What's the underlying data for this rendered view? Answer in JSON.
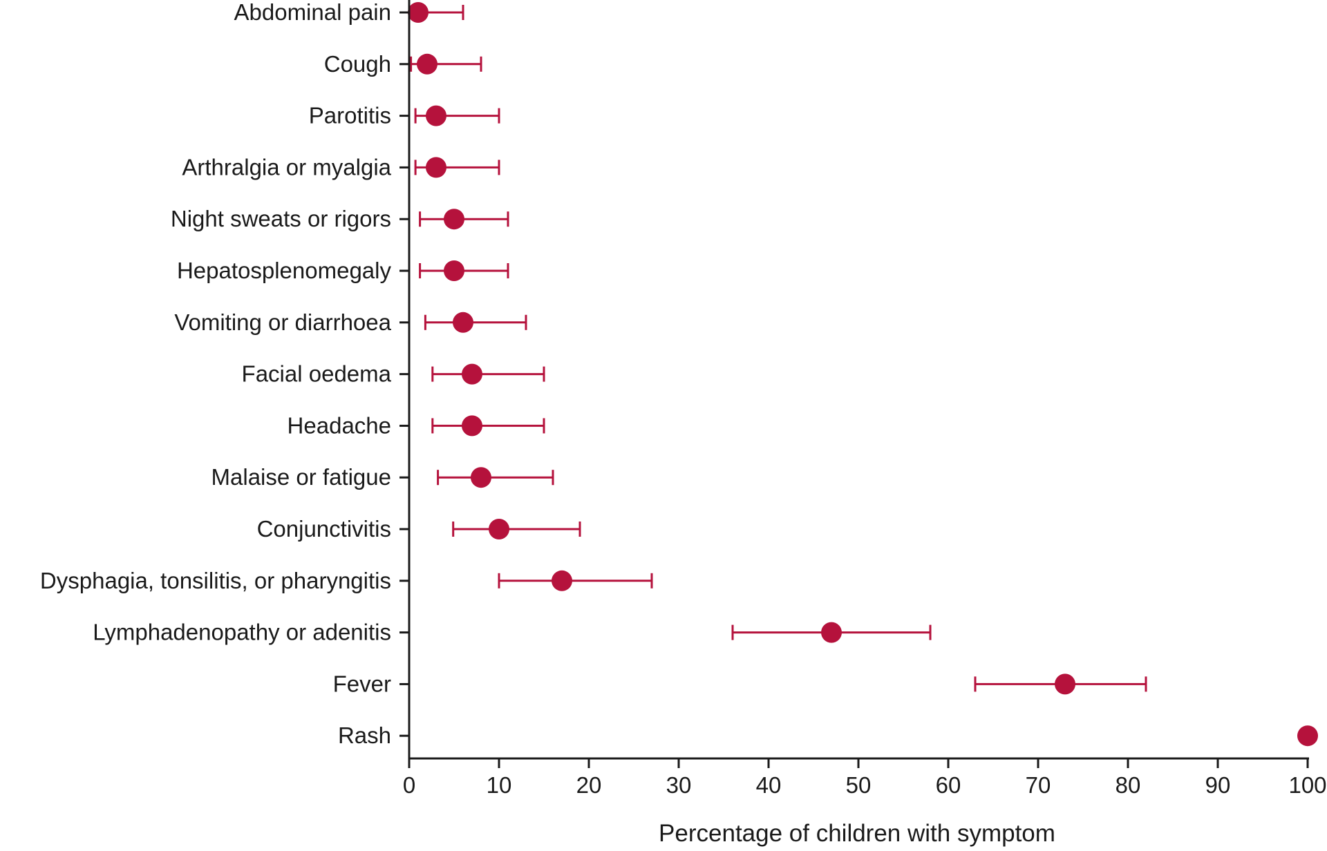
{
  "chart_data": {
    "type": "scatter",
    "subtype": "forest-plot-horizontal",
    "xlabel": "Percentage of children with symptom",
    "xlim": [
      0,
      100
    ],
    "xticks": [
      0,
      10,
      20,
      30,
      40,
      50,
      60,
      70,
      80,
      90,
      100
    ],
    "grid": false,
    "color": "#b5123c",
    "categories": [
      "Abdominal pain",
      "Cough",
      "Parotitis",
      "Arthralgia or myalgia",
      "Night sweats or rigors",
      "Hepatosplenomegaly",
      "Vomiting or diarrhoea",
      "Facial oedema",
      "Headache",
      "Malaise or fatigue",
      "Conjunctivitis",
      "Dysphagia, tonsilitis, or pharyngitis",
      "Lymphadenopathy or adenitis",
      "Fever",
      "Rash"
    ],
    "values": [
      1,
      2,
      3,
      3,
      5,
      5,
      6,
      7,
      7,
      8,
      10,
      17,
      47,
      73,
      100
    ],
    "ci_low": [
      0,
      0.2,
      0.7,
      0.7,
      1.2,
      1.2,
      1.8,
      2.6,
      2.6,
      3.2,
      4.9,
      10,
      36,
      63,
      100
    ],
    "ci_high": [
      6,
      8,
      10,
      10,
      11,
      11,
      13,
      15,
      15,
      16,
      19,
      27,
      58,
      82,
      100
    ]
  }
}
